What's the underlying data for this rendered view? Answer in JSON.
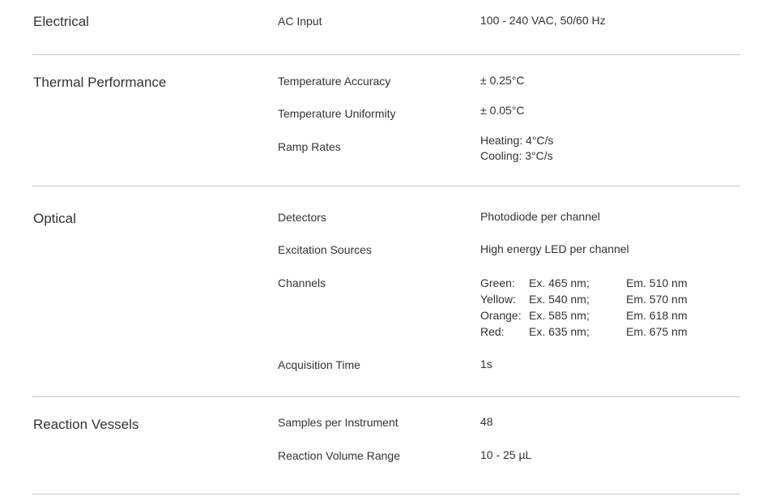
{
  "sections": [
    {
      "title": "Electrical",
      "rows": [
        {
          "label": "AC Input",
          "value": "100 - 240 VAC, 50/60 Hz"
        }
      ]
    },
    {
      "title": "Thermal Performance",
      "rows": [
        {
          "label": "Temperature Accuracy",
          "value": "± 0.25°C"
        },
        {
          "label": "Temperature Uniformity",
          "value": "± 0.05°C"
        },
        {
          "label": "Ramp Rates",
          "value_lines": [
            "Heating: 4°C/s",
            "Cooling: 3°C/s"
          ]
        }
      ]
    },
    {
      "title": "Optical",
      "rows": [
        {
          "label": "Detectors",
          "value": "Photodiode per channel"
        },
        {
          "label": "Excitation Sources",
          "value": "High energy LED per channel"
        },
        {
          "label": "Channels",
          "channels": [
            {
              "name": "Green:",
              "ex": "Ex. 465 nm;",
              "em": "Em. 510 nm"
            },
            {
              "name": "Yellow:",
              "ex": "Ex. 540 nm;",
              "em": "Em. 570 nm"
            },
            {
              "name": "Orange:",
              "ex": "Ex. 585 nm;",
              "em": "Em. 618 nm"
            },
            {
              "name": "Red:",
              "ex": "Ex. 635 nm;",
              "em": "Em. 675 nm"
            }
          ]
        },
        {
          "label": "Acquisition Time",
          "value": "1s"
        }
      ]
    },
    {
      "title": "Reaction Vessels",
      "rows": [
        {
          "label": "Samples per Instrument",
          "value": "48"
        },
        {
          "label": "Reaction Volume Range",
          "value": "10 - 25 µL"
        }
      ]
    }
  ]
}
